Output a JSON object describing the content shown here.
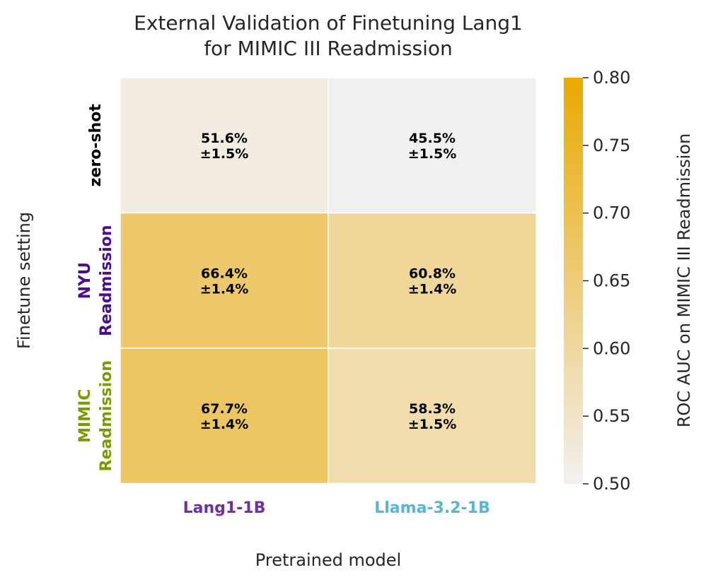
{
  "chart_data": {
    "type": "heatmap",
    "title_lines": [
      "External Validation of Finetuning Lang1",
      "for MIMIC III Readmission"
    ],
    "xlabel": "Pretrained model",
    "ylabel": "Finetune setting",
    "x_categories": [
      {
        "label": "Lang1-1B",
        "color": "#7030a0"
      },
      {
        "label": "Llama-3.2-1B",
        "color": "#5bb4d4"
      }
    ],
    "y_categories": [
      {
        "lines": [
          "zero-shot"
        ],
        "color": "#000000",
        "bold": false
      },
      {
        "lines": [
          "NYU",
          "Readmission"
        ],
        "color": "#4b0d8c",
        "bold": true
      },
      {
        "lines": [
          "MIMIC",
          "Readmission"
        ],
        "color": "#7a9a01",
        "bold": true
      }
    ],
    "values": [
      [
        0.516,
        0.455
      ],
      [
        0.664,
        0.608
      ],
      [
        0.677,
        0.583
      ]
    ],
    "annotations": [
      [
        [
          "51.6%",
          "±1.5%"
        ],
        [
          "45.5%",
          "±1.5%"
        ]
      ],
      [
        [
          "66.4%",
          "±1.4%"
        ],
        [
          "60.8%",
          "±1.4%"
        ]
      ],
      [
        [
          "67.7%",
          "±1.4%"
        ],
        [
          "58.3%",
          "±1.5%"
        ]
      ]
    ],
    "colorbar": {
      "label": "ROC AUC on MIMIC III Readmission",
      "range": [
        0.5,
        0.8
      ],
      "ticks": [
        "0.50",
        "0.55",
        "0.60",
        "0.65",
        "0.70",
        "0.75",
        "0.80"
      ],
      "low_color": "#f2f0ef",
      "high_color": "#e9a900"
    }
  }
}
